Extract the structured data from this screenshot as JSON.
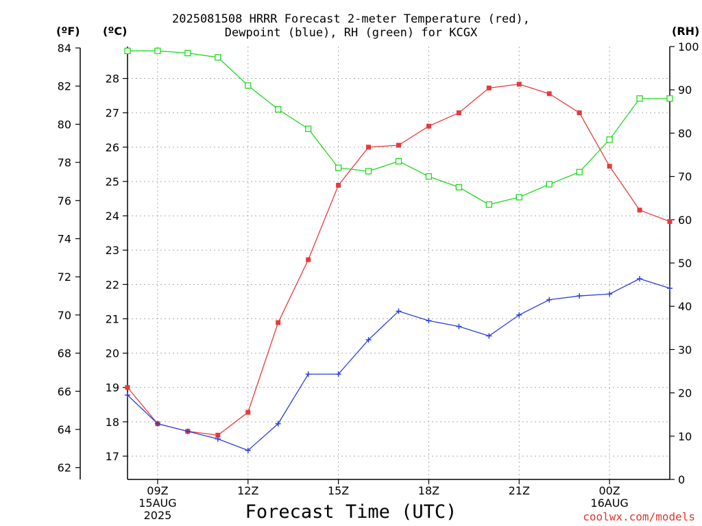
{
  "title_line1": "2025081508 HRRR Forecast 2-meter Temperature (red),",
  "title_line2": "Dewpoint (blue), RH (green) for KCGX",
  "units": {
    "fahrenheit": "(ºF)",
    "celsius": "(ºC)",
    "rh": "(RH)"
  },
  "xlabel": "Forecast Time (UTC)",
  "credit": "coolwx.com/models",
  "colors": {
    "temperature": "#e8393a",
    "dewpoint": "#2b3fe0",
    "rh": "#1fd81f",
    "grid": "#aaaaaa"
  },
  "chart_data": {
    "type": "line",
    "x_hours": [
      8,
      9,
      10,
      11,
      12,
      13,
      14,
      15,
      16,
      17,
      18,
      19,
      20,
      21,
      22,
      23,
      24,
      25,
      26
    ],
    "x_ticks": [
      {
        "hour": 9,
        "lines": [
          "09Z",
          "15AUG",
          "2025"
        ]
      },
      {
        "hour": 12,
        "lines": [
          "12Z"
        ]
      },
      {
        "hour": 15,
        "lines": [
          "15Z"
        ]
      },
      {
        "hour": 18,
        "lines": [
          "18Z"
        ]
      },
      {
        "hour": 21,
        "lines": [
          "21Z"
        ]
      },
      {
        "hour": 24,
        "lines": [
          "00Z",
          "16AUG"
        ]
      }
    ],
    "fahrenheit_axis": {
      "min": 62,
      "max": 84,
      "ticks": [
        62,
        64,
        66,
        68,
        70,
        72,
        74,
        76,
        78,
        80,
        82,
        84
      ]
    },
    "celsius_axis": {
      "min": 16.67,
      "max": 28.89,
      "ticks": [
        17,
        18,
        19,
        20,
        21,
        22,
        23,
        24,
        25,
        26,
        27,
        28
      ]
    },
    "rh_axis": {
      "min": 0,
      "max": 100,
      "ticks": [
        0,
        10,
        20,
        30,
        40,
        50,
        60,
        70,
        80,
        90,
        100
      ]
    },
    "series": [
      {
        "key": "temperature",
        "unit": "F",
        "marker": "filled-square",
        "values": [
          66.2,
          64.3,
          63.9,
          63.7,
          64.9,
          69.6,
          72.9,
          76.8,
          78.8,
          78.9,
          79.9,
          80.6,
          81.9,
          82.1,
          81.6,
          80.6,
          77.8,
          75.5,
          74.9
        ]
      },
      {
        "key": "dewpoint",
        "unit": "F",
        "marker": "plus",
        "values": [
          65.8,
          64.3,
          63.9,
          63.5,
          62.9,
          64.3,
          66.9,
          66.9,
          68.7,
          70.2,
          69.7,
          69.4,
          68.9,
          70.0,
          70.8,
          71.0,
          71.1,
          71.9,
          71.4
        ]
      },
      {
        "key": "rh",
        "unit": "%",
        "marker": "open-square",
        "values": [
          99.0,
          99.0,
          98.5,
          97.5,
          91.0,
          85.5,
          81.0,
          72.0,
          71.2,
          73.5,
          70.0,
          67.5,
          63.5,
          65.2,
          68.2,
          71.0,
          78.5,
          88.0,
          88.0
        ]
      }
    ]
  }
}
